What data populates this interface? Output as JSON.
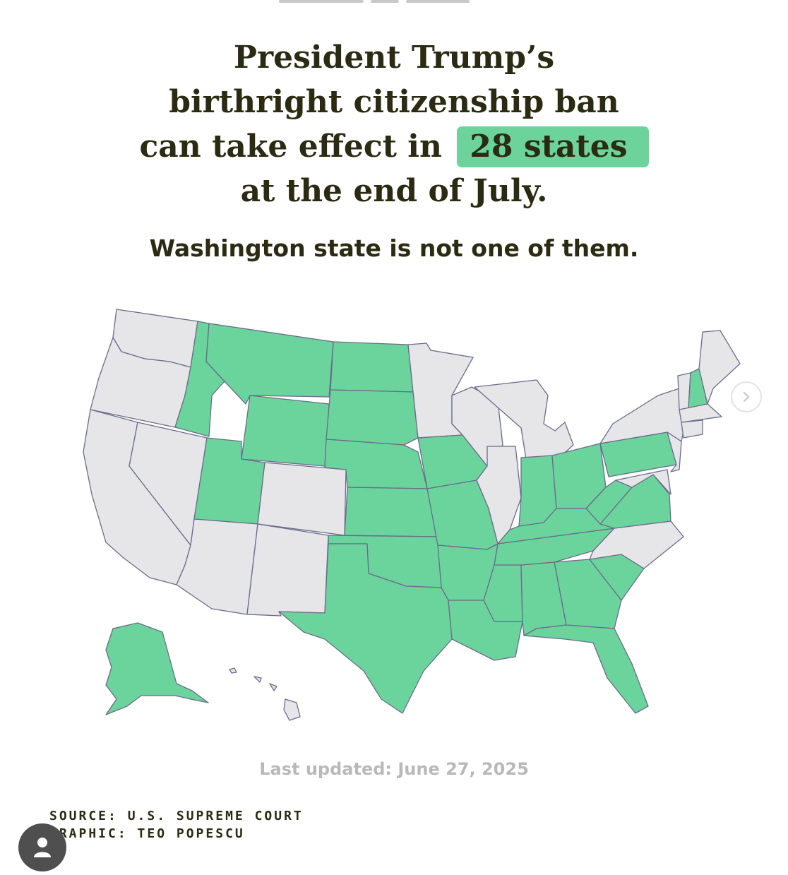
{
  "headline": {
    "line1": "President Trump’s",
    "line2": "birthright citizenship ban",
    "line3_prefix": "can take effect in",
    "highlight": "28 states",
    "line4": "at the end of July."
  },
  "subhead": "Washington state is not one of them.",
  "map": {
    "colors": {
      "ban_can_take_effect": "#6bd49c",
      "not_affected": "#e6e6e9",
      "border": "#6b6b8a"
    },
    "green_states": [
      "ID",
      "MT",
      "WY",
      "UT",
      "ND",
      "SD",
      "NE",
      "KS",
      "OK",
      "TX",
      "IA",
      "MO",
      "AR",
      "LA",
      "MS",
      "AL",
      "GA",
      "FL",
      "SC",
      "TN",
      "KY",
      "IN",
      "OH",
      "WV",
      "VA",
      "PA",
      "NH",
      "AK"
    ]
  },
  "next_button": {
    "icon": "chevron-right-icon"
  },
  "last_updated": "Last updated: June 27, 2025",
  "credits": {
    "source": "SOURCE: U.S. SUPREME COURT",
    "graphic": "GRAPHIC: TEO POPESCU"
  },
  "avatar": {
    "icon": "user-icon"
  }
}
